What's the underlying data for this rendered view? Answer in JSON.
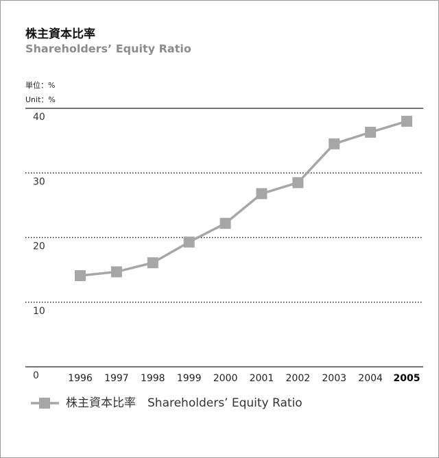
{
  "chart_data": {
    "type": "line",
    "title": "株主資本比率",
    "subtitle": "Shareholders’ Equity Ratio",
    "unit_labels": [
      "単位：%",
      "Unit：%"
    ],
    "categories": [
      "1996",
      "1997",
      "1998",
      "1999",
      "2000",
      "2001",
      "2002",
      "2003",
      "2004",
      "2005"
    ],
    "series": [
      {
        "name": "株主資本比率　Shareholders’ Equity Ratio",
        "color": "#a6a6a6",
        "values": [
          14.1,
          14.7,
          16.1,
          19.3,
          22.2,
          26.8,
          28.5,
          34.5,
          36.3,
          38.0
        ]
      }
    ],
    "ylim": [
      0,
      40
    ],
    "yticks": [
      0,
      10,
      20,
      30,
      40
    ],
    "grid": true
  }
}
